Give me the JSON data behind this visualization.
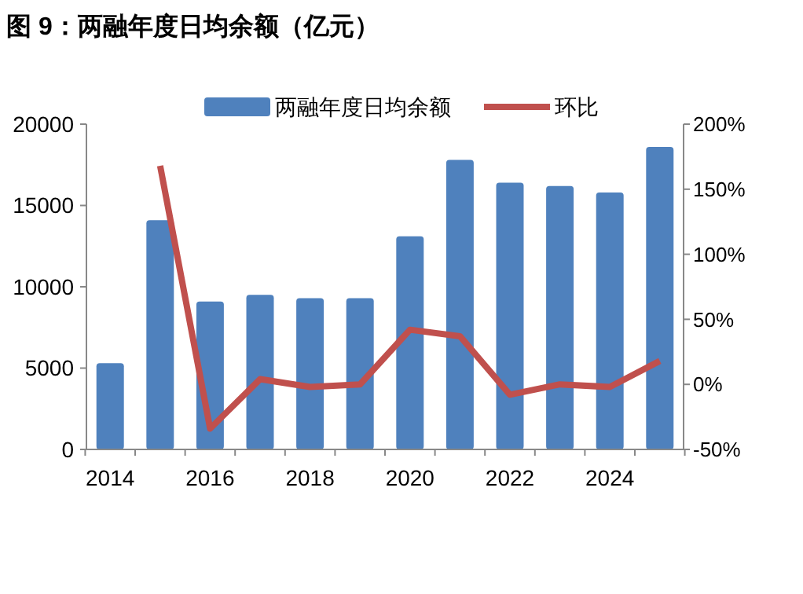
{
  "chart_data": {
    "type": "bar",
    "title": "图 9：两融年度日均余额（亿元）",
    "categories": [
      "2014",
      null,
      "2016",
      null,
      "2018",
      null,
      "2020",
      null,
      "2022",
      null,
      "2024",
      null
    ],
    "series": [
      {
        "name": "两融年度日均余额",
        "color": "#4f81bd",
        "values": [
          5300,
          14100,
          9100,
          9500,
          9300,
          9300,
          13100,
          17800,
          16400,
          16200,
          15800,
          18600
        ]
      },
      {
        "name": "环比",
        "type": "line",
        "axis": "y2",
        "color": "#c0504d",
        "values": [
          null,
          168,
          -34,
          4,
          -2,
          0,
          42,
          37,
          -8,
          0,
          -2,
          18
        ]
      }
    ],
    "ylim": [
      0,
      20000
    ],
    "yticks": [
      0,
      5000,
      10000,
      15000,
      20000
    ],
    "y2lim": [
      -50,
      200
    ],
    "y2ticks": [
      {
        "value": -50,
        "label": "-50%"
      },
      {
        "value": 0,
        "label": "0%"
      },
      {
        "value": 50,
        "label": "50%"
      },
      {
        "value": 100,
        "label": "100%"
      },
      {
        "value": 150,
        "label": "150%"
      },
      {
        "value": 200,
        "label": "200%"
      }
    ],
    "legend": "top",
    "grid": false
  }
}
